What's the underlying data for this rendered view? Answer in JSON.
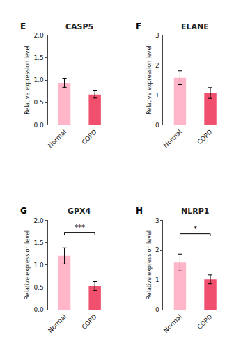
{
  "chart_data": [
    {
      "type": "bar",
      "title": "CASP5",
      "categories": [
        "Normal",
        "COPD"
      ],
      "values": [
        0.94,
        0.68
      ],
      "errors": [
        0.1,
        0.08
      ],
      "colors": [
        "#ffb6c8",
        "#f0506e"
      ],
      "y_label": "Relative expression level",
      "ylim": [
        0,
        2.0
      ],
      "yticks": [
        {
          "value": 0.0,
          "label": "0.0"
        },
        0.5,
        {
          "value": 1.0,
          "label": "1.0"
        },
        1.5,
        {
          "value": 2.0,
          "label": "2.0"
        }
      ],
      "grid": false,
      "annotations": [
        {
          "text": "E"
        }
      ]
    },
    {
      "type": "bar",
      "title": "ELANE",
      "categories": [
        "Normal",
        "COPD"
      ],
      "values": [
        1.58,
        1.07
      ],
      "errors": [
        0.23,
        0.18
      ],
      "colors": [
        "#ffb6c8",
        "#f0506e"
      ],
      "y_label": "Relative expression level",
      "ylim": [
        0,
        3.0
      ],
      "yticks": [
        0,
        1,
        2,
        3
      ],
      "grid": false,
      "annotations": [
        {
          "text": "F"
        }
      ]
    },
    {
      "type": "bar",
      "title": "GPX4",
      "categories": [
        "Normal",
        "COPD"
      ],
      "values": [
        1.2,
        0.53
      ],
      "errors": [
        0.18,
        0.1
      ],
      "colors": [
        "#ffb6c8",
        "#f0506e"
      ],
      "y_label": "Relative expression level",
      "ylim": [
        0,
        2.0
      ],
      "yticks": [
        {
          "value": 0.0,
          "label": "0.0"
        },
        0.5,
        {
          "value": 1.0,
          "label": "1.0"
        },
        1.5,
        {
          "value": 2.0,
          "label": "2.0"
        }
      ],
      "grid": false,
      "annotations": [
        {
          "text": "G"
        },
        {
          "text": "***",
          "y": 1.72,
          "x1": "Normal",
          "x2": "COPD"
        }
      ]
    },
    {
      "type": "bar",
      "title": "NLRP1",
      "categories": [
        "Normal",
        "COPD"
      ],
      "values": [
        1.58,
        1.02
      ],
      "errors": [
        0.28,
        0.15
      ],
      "colors": [
        "#ffb6c8",
        "#f0506e"
      ],
      "y_label": "Relative expression level",
      "ylim": [
        0,
        3.0
      ],
      "yticks": [
        0,
        1,
        2,
        3
      ],
      "grid": false,
      "annotations": [
        {
          "text": "H"
        },
        {
          "text": "*",
          "y": 2.55,
          "x1": "Normal",
          "x2": "COPD"
        }
      ]
    }
  ]
}
